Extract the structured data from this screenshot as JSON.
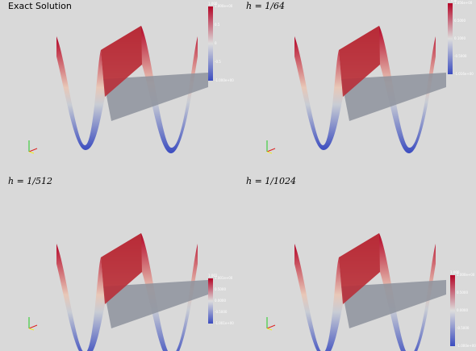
{
  "panels": [
    {
      "title": "Exact Solution",
      "colorbar": {
        "labels": [
          "1.000",
          "1.000e+00",
          "0.5",
          "0",
          "-0.5",
          "-1.000e+00"
        ]
      }
    },
    {
      "title": "h = 1/64",
      "colorbar": {
        "labels": [
          "1.056",
          "1.056e+00",
          "0.5000",
          "0.1000",
          "-0.5000",
          "-1.016e+00"
        ]
      }
    },
    {
      "title": "h = 1/512",
      "colorbar": {
        "labels": [
          "1.001",
          "1.001e+00",
          "0.5000",
          "0.0000",
          "-0.5000",
          "-1.001e+00"
        ]
      }
    },
    {
      "title": "h = 1/1024",
      "colorbar": {
        "labels": [
          "1.000",
          "1.000e+00",
          "0.5000",
          "0.0000",
          "-0.5000",
          "-1.000e+00"
        ]
      }
    }
  ]
}
